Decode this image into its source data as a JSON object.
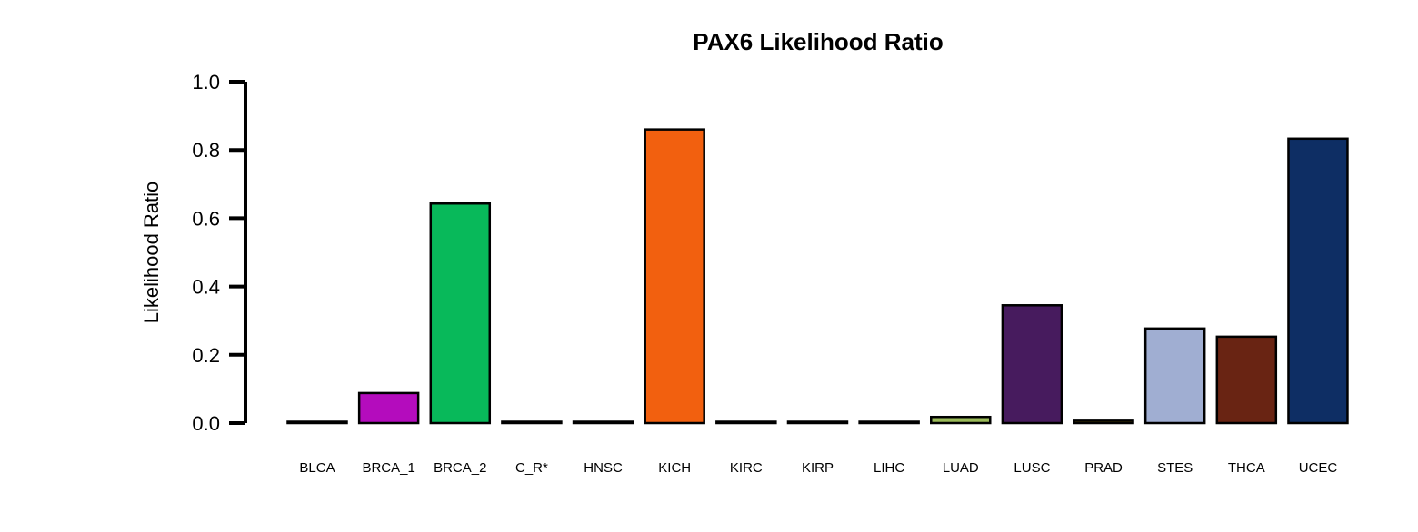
{
  "chart_data": {
    "type": "bar",
    "title": "PAX6 Likelihood Ratio",
    "xlabel": "",
    "ylabel": "Likelihood Ratio",
    "ylim": [
      0,
      1.0
    ],
    "yticks": [
      "0.0",
      "0.2",
      "0.4",
      "0.6",
      "0.8",
      "1.0"
    ],
    "ytick_values": [
      0,
      0.2,
      0.4,
      0.6,
      0.8,
      1.0
    ],
    "grid": false,
    "categories": [
      "BLCA",
      "BRCA_1",
      "BRCA_2",
      "C_R*",
      "HNSC",
      "KICH",
      "KIRC",
      "KIRP",
      "LIHC",
      "LUAD",
      "LUSC",
      "PRAD",
      "STES",
      "THCA",
      "UCEC"
    ],
    "values": [
      0.002,
      0.088,
      0.643,
      0.001,
      0.003,
      0.86,
      0.001,
      0.002,
      0.001,
      0.018,
      0.345,
      0.007,
      0.277,
      0.253,
      0.833
    ],
    "colors": [
      "#cc2020",
      "#b40cbd",
      "#08b95a",
      "#1a4fa0",
      "#3a7fd0",
      "#f2600f",
      "#d4a000",
      "#7a9a30",
      "#c43070",
      "#9bbb59",
      "#471b5e",
      "#c8a000",
      "#a0aed2",
      "#692413",
      "#0e2e64"
    ]
  }
}
